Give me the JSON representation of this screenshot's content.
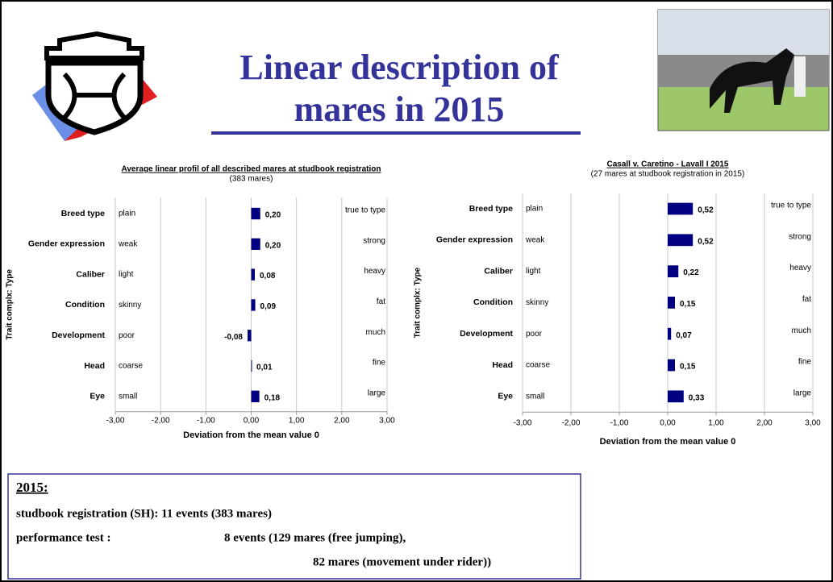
{
  "title": "Linear description of mares in 2015",
  "chart_data": [
    {
      "type": "bar",
      "orientation": "horizontal",
      "title": "Average linear profil of all described mares at studbook registration",
      "subtitle": "(383 mares)",
      "y_label": "Trait complx: Type",
      "x_label": "Deviation from the mean value 0",
      "categories": [
        "Breed type",
        "Gender expression",
        "Caliber",
        "Condition",
        "Development",
        "Head",
        "Eye"
      ],
      "low_labels": [
        "plain",
        "weak",
        "light",
        "skinny",
        "poor",
        "coarse",
        "small"
      ],
      "high_labels": [
        "true to type",
        "strong",
        "heavy",
        "fat",
        "much",
        "fine",
        "large"
      ],
      "values": [
        0.2,
        0.2,
        0.08,
        0.09,
        -0.08,
        0.01,
        0.18
      ],
      "value_labels": [
        "0,20",
        "0,20",
        "0,08",
        "0,09",
        "-0,08",
        "0,01",
        "0,18"
      ],
      "color": "#000080",
      "xlim": [
        -3,
        3
      ],
      "xticks": [
        {
          "value": -3,
          "label": "-3,00"
        },
        {
          "value": -2,
          "label": "-2,00"
        },
        {
          "value": -1,
          "label": "-1,00"
        },
        {
          "value": 0,
          "label": "0,00"
        },
        {
          "value": 1,
          "label": "1,00"
        },
        {
          "value": 2,
          "label": "2,00"
        },
        {
          "value": 3,
          "label": "3,00"
        }
      ],
      "grid": true
    },
    {
      "type": "bar",
      "orientation": "horizontal",
      "title": "Casall v. Caretino - Lavall I 2015",
      "subtitle": "(27 mares at studbook registration in 2015)",
      "y_label": "Trait complx: Type",
      "x_label": "Deviation from the mean value 0",
      "categories": [
        "Breed type",
        "Gender expression",
        "Caliber",
        "Condition",
        "Development",
        "Head",
        "Eye"
      ],
      "low_labels": [
        "plain",
        "weak",
        "light",
        "skinny",
        "poor",
        "coarse",
        "small"
      ],
      "high_labels": [
        "true to type",
        "strong",
        "heavy",
        "fat",
        "much",
        "fine",
        "large"
      ],
      "values": [
        0.52,
        0.52,
        0.22,
        0.15,
        0.07,
        0.15,
        0.33
      ],
      "value_labels": [
        "0,52",
        "0,52",
        "0,22",
        "0,15",
        "0,07",
        "0,15",
        "0,33"
      ],
      "color": "#000080",
      "xlim": [
        -3,
        3
      ],
      "xticks": [
        {
          "value": -3,
          "label": "-3,00"
        },
        {
          "value": -2,
          "label": "-2,00"
        },
        {
          "value": -1,
          "label": "-1,00"
        },
        {
          "value": 0,
          "label": "0,00"
        },
        {
          "value": 1,
          "label": "1,00"
        },
        {
          "value": 2,
          "label": "2,00"
        },
        {
          "value": 3,
          "label": "3,00"
        }
      ],
      "grid": true
    }
  ],
  "summary": {
    "heading": "2015:",
    "lines": [
      "studbook registration (SH): 11 events (383 mares)",
      "performance test :",
      "8 events (129 mares (free jumping),",
      "82 mares (movement under rider))"
    ]
  }
}
